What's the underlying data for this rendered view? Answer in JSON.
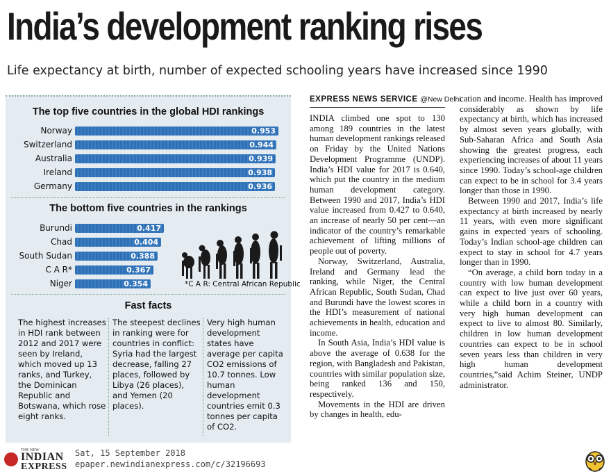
{
  "headline": "India’s development ranking rises",
  "subhead": "Life expectancy at birth, number of expected schooling years have increased since 1990",
  "chart_data": [
    {
      "type": "bar",
      "title": "The top five countries in the global HDI rankings",
      "categories": [
        "Norway",
        "Switzerland",
        "Australia",
        "Ireland",
        "Germany"
      ],
      "values": [
        0.953,
        0.944,
        0.939,
        0.938,
        0.936
      ],
      "labels": [
        "0.953",
        "0.944",
        "0.939",
        "0.938",
        "0.936"
      ],
      "ylim": [
        0,
        0.953
      ]
    },
    {
      "type": "bar",
      "title": "The bottom five countries in the rankings",
      "categories": [
        "Burundi",
        "Chad",
        "South Sudan",
        "C A R*",
        "Niger"
      ],
      "values": [
        0.417,
        0.404,
        0.388,
        0.367,
        0.354
      ],
      "labels": [
        "0.417",
        "0.404",
        "0.388",
        "0.367",
        "0.354"
      ],
      "ylim": [
        0,
        0.953
      ],
      "footnote": "*C A R: Central African Republic"
    }
  ],
  "fast_facts": {
    "title": "Fast facts",
    "items": [
      "The highest increases in HDI rank between 2012 and 2017 were seen by Ireland, which moved up 13 ranks, and Turkey, the Dominican Republic and Botswana, which rose eight ranks.",
      "The steepest declines in ranking were for countries in conflict: Syria had the largest decrease, falling 27 places, followed by Libya (26 places), and Yemen (20 places).",
      "Very high human development states have average per capita CO2 emissions of 10.7 tonnes. Low human development countries emit 0.3 tonnes per capita of CO2."
    ]
  },
  "article": {
    "byline": "EXPRESS NEWS SERVICE",
    "location": "@New Delhi",
    "col1": [
      "INDIA climbed one spot to 130 among 189 countries in the latest human development rankings released on Friday by the United Nations Development Programme (UNDP). India’s HDI value for 2017 is 0.640, which put the country in the medium human development category. Between 1990 and 2017, India’s HDI value increased from 0.427 to 0.640, an increase of nearly 50 per cent—an indicator of the country’s remarkable achievement of lifting millions of people out of poverty.",
      "Norway, Switzerland, Australia, Ireland and Germany lead the ranking, while Niger, the Central African Republic, South Sudan, Chad and Burundi have the lowest scores in the HDI’s measurement of national achievements in health, education and income.",
      "In South Asia, India’s HDI value is above the average of 0.638 for the region, with Bangladesh and Pakistan, countries with similar population size, being ranked 136 and 150, respectively.",
      "Movements in the HDI are driven by changes in health, edu-"
    ],
    "col2": [
      "cation and income. Health has improved considerably as shown by life expectancy at birth, which has increased by almost seven years globally, with Sub-Saharan Africa and South Asia showing the greatest progress, each experiencing increases of about 11 years since 1990. Today’s school-age children can expect to be in school for 3.4 years longer than those in 1990.",
      "Between 1990 and 2017, India’s life expectancy at birth increased by nearly 11 years, with even more significant gains in expected years of schooling. Today’s Indian school-age children can expect to stay in school for 4.7 years longer than in 1990.",
      "“On average, a child born today in a country with low human development can expect to live just over 60 years, while a child born in a country with very high human development can expect to live to almost 80. Similarly, children in low human development countries can expect to be in school seven years less than children in very high human development countries,”said Achim Steiner, UNDP administrator."
    ]
  },
  "footer": {
    "logo_small": "THE NEW",
    "logo_line1": "INDIAN",
    "logo_line2": "EXPRESS",
    "date": "Sat, 15 September 2018",
    "url": "epaper.newindianexpress.com/c/32196693"
  },
  "colors": {
    "panel_bg": "#e4ebf1",
    "bar": "#2f6fb4",
    "logo_red": "#c62828"
  }
}
